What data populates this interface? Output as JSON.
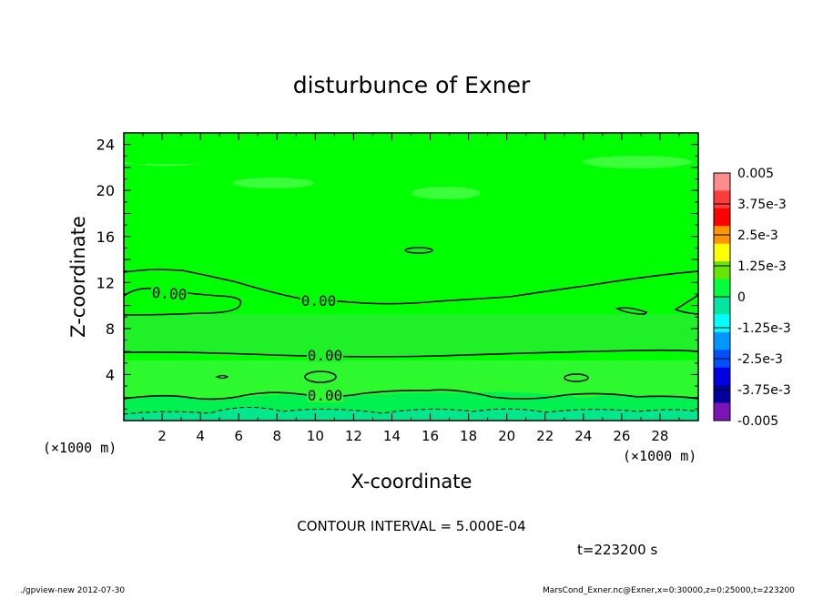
{
  "chart_data": {
    "type": "contour",
    "title": "disturbunce of Exner",
    "xlabel": "X-coordinate",
    "ylabel": "Z-coordinate",
    "x_unit_left": "(×1000 m)",
    "x_unit_right": "(×1000 m)",
    "xlim": [
      0,
      30
    ],
    "ylim": [
      0,
      25
    ],
    "x_ticks": [
      "2",
      "4",
      "6",
      "8",
      "10",
      "12",
      "14",
      "16",
      "18",
      "20",
      "22",
      "24",
      "26",
      "28"
    ],
    "y_ticks": [
      "4",
      "8",
      "12",
      "16",
      "20",
      "24"
    ],
    "contour_interval_text": "CONTOUR INTERVAL = 5.000E-04",
    "time_text": "t=223200 s",
    "contour_labels": [
      "0.00",
      "0.00",
      "0.00",
      "0.00"
    ],
    "colorbar": {
      "labels": [
        "0.005",
        "3.75e-3",
        "2.5e-3",
        "1.25e-3",
        "0",
        "-1.25e-3",
        "-2.5e-3",
        "-3.75e-3",
        "-0.005"
      ],
      "colors": [
        "#ff8c8c",
        "#ff3c3c",
        "#ff0000",
        "#ff9600",
        "#ffff00",
        "#66e600",
        "#00ff3c",
        "#00e6a0",
        "#00ffff",
        "#0096ff",
        "#0050ff",
        "#0000e0",
        "#0000a0",
        "#7a14b4"
      ]
    },
    "field_colors": {
      "main": "#00ff00",
      "light": "#3cff3c",
      "bottom": "#00e870"
    }
  },
  "footer": {
    "left": "./gpview-new   2012-07-30",
    "right": "MarsCond_Exner.nc@Exner,x=0:30000,z=0:25000,t=223200"
  }
}
